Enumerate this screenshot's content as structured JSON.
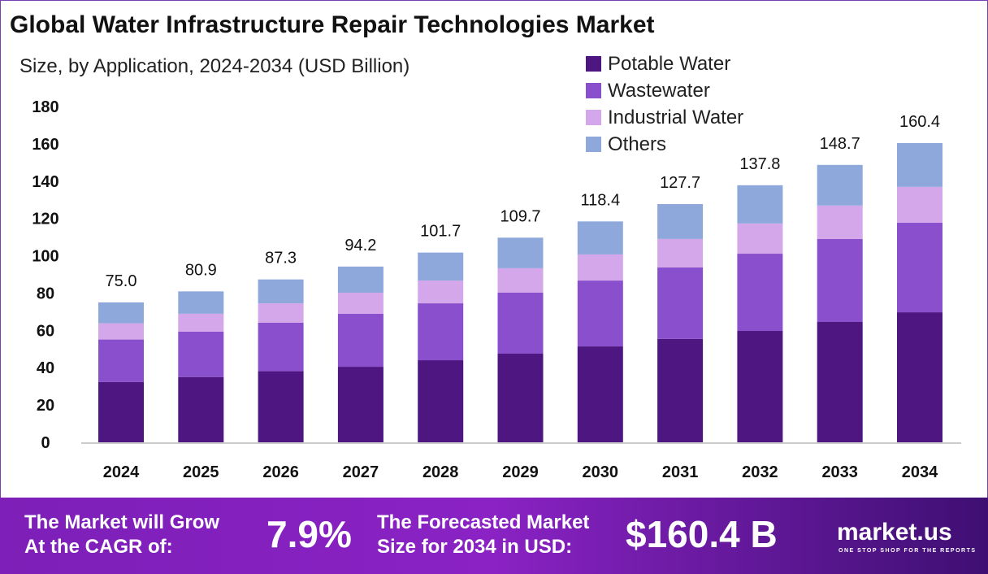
{
  "chart_data": {
    "type": "stacked-bar",
    "title": "Global Water Infrastructure Repair Technologies Market",
    "subtitle": "Size, by Application, 2024-2034 (USD Billion)",
    "categories": [
      "2024",
      "2025",
      "2026",
      "2027",
      "2028",
      "2029",
      "2030",
      "2031",
      "2032",
      "2033",
      "2034"
    ],
    "series": [
      {
        "name": "Potable Water",
        "color": "#4e1680",
        "values": [
          32.3,
          35.0,
          38.1,
          40.5,
          44.0,
          47.5,
          51.4,
          55.4,
          59.7,
          64.5,
          69.7
        ]
      },
      {
        "name": "Wastewater",
        "color": "#8a4fcc",
        "values": [
          22.8,
          24.3,
          26.0,
          28.4,
          30.5,
          32.7,
          35.3,
          38.3,
          41.4,
          44.5,
          48.0
        ]
      },
      {
        "name": "Industrial Water",
        "color": "#d4a6ea",
        "values": [
          8.7,
          9.6,
          10.4,
          11.3,
          12.2,
          13.1,
          14.0,
          15.3,
          16.2,
          17.9,
          19.2
        ]
      },
      {
        "name": "Others",
        "color": "#8fa8dc",
        "values": [
          11.2,
          12.0,
          12.8,
          14.0,
          15.0,
          16.4,
          17.7,
          18.7,
          20.5,
          21.8,
          23.5
        ]
      }
    ],
    "totals": [
      "75.0",
      "80.9",
      "87.3",
      "94.2",
      "101.7",
      "109.7",
      "118.4",
      "127.7",
      "137.8",
      "148.7",
      "160.4"
    ],
    "ylim": [
      0,
      180
    ],
    "yticks": [
      "0",
      "20",
      "40",
      "60",
      "80",
      "100",
      "120",
      "140",
      "160",
      "180"
    ],
    "grid": false,
    "legend_position": "top-right"
  },
  "footer": {
    "cagr_label_1": "The Market will Grow",
    "cagr_label_2": "At the CAGR of:",
    "cagr_value": "7.9%",
    "forecast_label_1": "The Forecasted Market",
    "forecast_label_2": "Size for 2034 in USD:",
    "forecast_value": "$160.4 B",
    "brand": "market.us",
    "tagline": "ONE STOP SHOP FOR THE REPORTS"
  }
}
